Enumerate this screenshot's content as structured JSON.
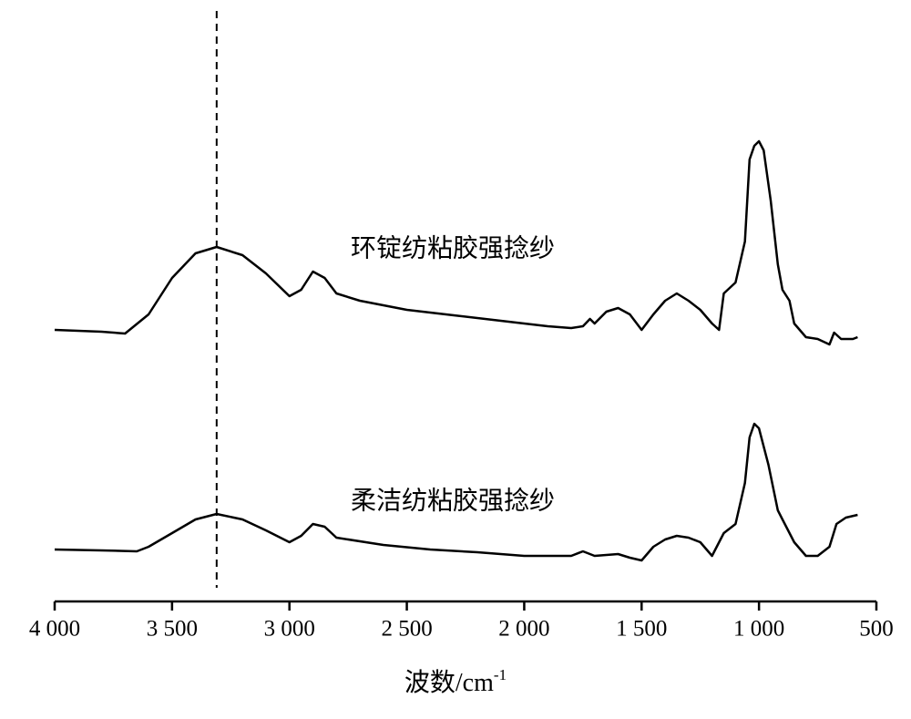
{
  "chart_data": {
    "type": "line",
    "x_label": "波数/cm",
    "x_label_sup": "-1",
    "xlim": [
      4000,
      500
    ],
    "ylim": [
      0,
      110
    ],
    "xticks": [
      {
        "value": 4000,
        "label": "4 000"
      },
      {
        "value": 3500,
        "label": "3 500"
      },
      {
        "value": 3000,
        "label": "3 000"
      },
      {
        "value": 2500,
        "label": "2 500"
      },
      {
        "value": 2000,
        "label": "2 000"
      },
      {
        "value": 1500,
        "label": "1 500"
      },
      {
        "value": 1000,
        "label": "1 000"
      },
      500
    ],
    "vline": 3310,
    "series": [
      {
        "name": "环锭纺粘胶强捻纱",
        "color": "#000000",
        "x": [
          4000,
          3800,
          3700,
          3600,
          3500,
          3400,
          3310,
          3200,
          3100,
          3000,
          2950,
          2900,
          2850,
          2800,
          2700,
          2500,
          2300,
          2100,
          2000,
          1900,
          1800,
          1750,
          1720,
          1700,
          1650,
          1600,
          1550,
          1500,
          1450,
          1400,
          1350,
          1300,
          1250,
          1200,
          1170,
          1150,
          1100,
          1060,
          1040,
          1020,
          1000,
          980,
          950,
          920,
          900,
          870,
          850,
          800,
          750,
          700,
          680,
          650,
          600,
          580
        ],
        "values": [
          59.6,
          59.2,
          58.8,
          63,
          71,
          76.4,
          77.8,
          76,
          72,
          67,
          68.4,
          72.4,
          71,
          67.6,
          66,
          64,
          62.8,
          61.6,
          61,
          60.4,
          60,
          60.4,
          62,
          61,
          63.6,
          64.4,
          63,
          59.6,
          63,
          66,
          67.6,
          66,
          64,
          61,
          59.6,
          67.6,
          70,
          79,
          97,
          100,
          101,
          99,
          88,
          74,
          68.4,
          66,
          61,
          58,
          57.6,
          56.4,
          59,
          57.6,
          57.6,
          58
        ]
      },
      {
        "name": "柔洁纺粘胶强捻纱",
        "color": "#000000",
        "x": [
          4000,
          3800,
          3650,
          3600,
          3500,
          3400,
          3310,
          3200,
          3100,
          3000,
          2950,
          2900,
          2850,
          2800,
          2600,
          2400,
          2200,
          2000,
          1800,
          1750,
          1700,
          1600,
          1550,
          1500,
          1450,
          1400,
          1350,
          1300,
          1250,
          1200,
          1150,
          1100,
          1060,
          1040,
          1020,
          1000,
          960,
          920,
          900,
          850,
          800,
          750,
          700,
          670,
          630,
          580
        ],
        "values": [
          11.4,
          11.2,
          11,
          12,
          15,
          18,
          19.2,
          18,
          15.6,
          13,
          14.4,
          17,
          16.4,
          14,
          12.4,
          11.4,
          10.8,
          10,
          10,
          11,
          10,
          10.4,
          9.6,
          9,
          12,
          13.6,
          14.4,
          14,
          13,
          10,
          15,
          17,
          26,
          36,
          39,
          38,
          30,
          20,
          18,
          13,
          10,
          10,
          12,
          17,
          18.4,
          19
        ]
      }
    ]
  }
}
